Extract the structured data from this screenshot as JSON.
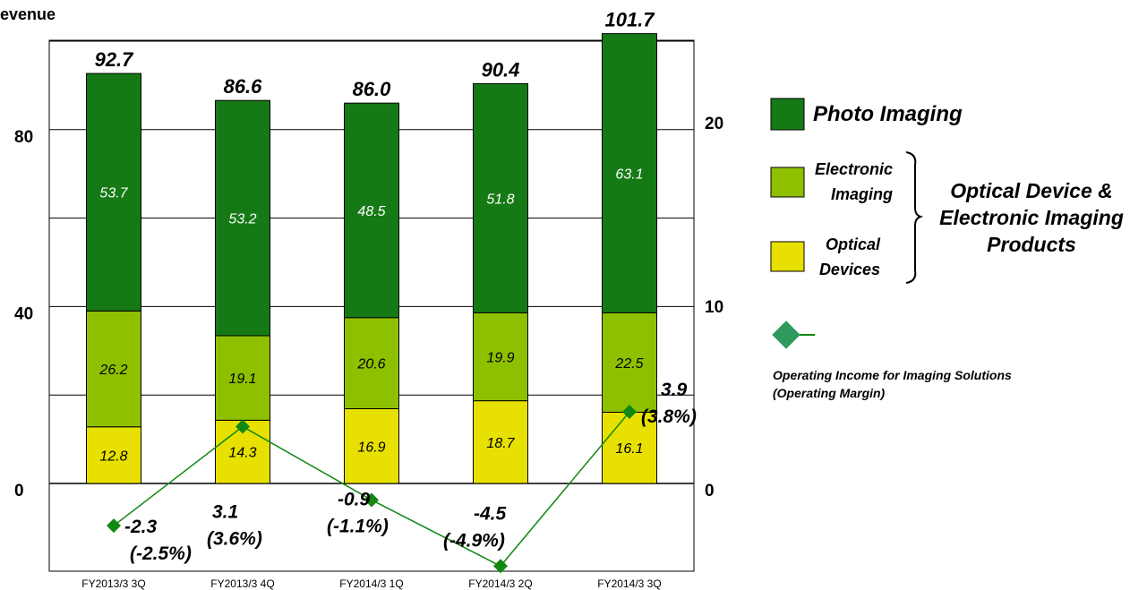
{
  "chart_data": {
    "type": "bar",
    "stacked": true,
    "ylabel_partial": "evenue",
    "categories": [
      "FY2013/3 3Q",
      "FY2013/3 4Q",
      "FY2014/3 1Q",
      "FY2014/3 2Q",
      "FY2014/3 3Q"
    ],
    "series": [
      {
        "name": "Optical Devices",
        "values": [
          12.8,
          14.3,
          16.9,
          18.7,
          16.1
        ],
        "color": "#e8e000"
      },
      {
        "name": "Electronic Imaging",
        "values": [
          26.2,
          19.1,
          20.6,
          19.9,
          22.5
        ],
        "color": "#8fc000"
      },
      {
        "name": "Photo Imaging",
        "values": [
          53.7,
          53.2,
          48.5,
          51.8,
          63.1
        ],
        "color": "#157a15"
      }
    ],
    "totals": [
      "92.7",
      "86.6",
      "86.0",
      "90.4",
      "101.7"
    ],
    "ylim": [
      0,
      100
    ],
    "yticks": [
      "0",
      "40",
      "80"
    ],
    "y2lim": [
      0,
      25
    ],
    "y2ticks": [
      "0",
      "10",
      "20"
    ],
    "line_series": {
      "name": "Operating Income for Imaging Solutions",
      "name_line2": "(Operating Margin)",
      "axis": "right",
      "values": [
        -2.3,
        3.1,
        -0.9,
        -4.5,
        3.9
      ],
      "labels": [
        "-2.3",
        "3.1",
        "-0.9",
        "-4.5",
        "3.9"
      ],
      "margins": [
        "(-2.5%)",
        "(3.6%)",
        "(-1.1%)",
        "(-4.9%)",
        "(3.8%)"
      ],
      "color": "#118811"
    },
    "legend": {
      "position": "right",
      "photo": "Photo Imaging",
      "electronic_line1": "Electronic",
      "electronic_line2": "Imaging",
      "optical_line1": "Optical",
      "optical_line2": "Devices",
      "group_line1": "Optical Device &",
      "group_line2": "Electronic Imaging",
      "group_line3": "Products"
    },
    "grid": true
  }
}
